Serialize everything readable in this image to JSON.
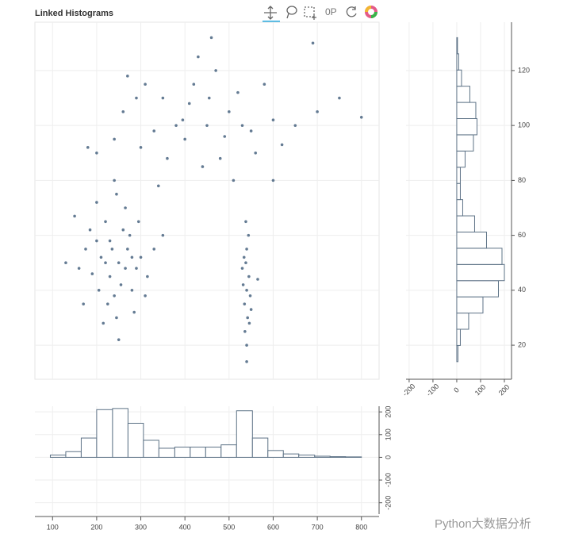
{
  "title": "Linked Histograms",
  "watermark": "Python大数据分析",
  "chart_data": [
    {
      "type": "scatter",
      "color": "#3d5a78",
      "x": [
        250,
        230,
        270,
        210,
        290,
        240,
        260,
        200,
        280,
        220,
        300,
        190,
        245,
        265,
        175,
        315,
        235,
        255,
        225,
        275,
        205,
        295,
        185,
        245,
        160,
        330,
        215,
        285,
        130,
        350,
        250,
        240,
        200,
        310,
        150,
        170,
        265,
        220,
        280,
        230,
        540,
        535,
        545,
        538,
        542,
        532,
        548,
        540,
        536,
        544,
        540,
        530,
        550,
        538,
        546,
        540,
        565,
        534,
        450,
        400,
        500,
        350,
        550,
        300,
        600,
        420,
        480,
        380,
        520,
        260,
        650,
        440,
        560,
        330,
        470,
        240,
        700,
        410,
        490,
        360,
        580,
        290,
        620,
        430,
        510,
        200,
        750,
        340,
        800,
        460,
        270,
        690,
        180,
        600,
        395,
        530,
        455,
        310
      ],
      "values": [
        50,
        45,
        55,
        52,
        48,
        38,
        62,
        58,
        40,
        65,
        52,
        46,
        30,
        70,
        55,
        45,
        55,
        42,
        35,
        60,
        40,
        65,
        62,
        75,
        48,
        55,
        28,
        32,
        50,
        60,
        22,
        80,
        72,
        38,
        67,
        35,
        48,
        50,
        52,
        58,
        40,
        35,
        45,
        50,
        30,
        42,
        38,
        55,
        25,
        60,
        20,
        48,
        33,
        65,
        28,
        14,
        44,
        52,
        100,
        95,
        105,
        110,
        98,
        92,
        102,
        115,
        88,
        100,
        112,
        105,
        100,
        85,
        90,
        98,
        120,
        95,
        105,
        108,
        96,
        88,
        115,
        110,
        93,
        125,
        80,
        90,
        110,
        78,
        103,
        132,
        118,
        130,
        92,
        80,
        102,
        100,
        110,
        115
      ]
    },
    {
      "type": "histogram",
      "bins": [
        95,
        130,
        165,
        200,
        236,
        271,
        306,
        341,
        377,
        412,
        447,
        482,
        517,
        553,
        588,
        623,
        658,
        694,
        729,
        764,
        800
      ],
      "values": [
        10,
        25,
        85,
        210,
        215,
        150,
        75,
        40,
        45,
        45,
        45,
        55,
        205,
        85,
        30,
        15,
        10,
        5,
        3,
        2
      ],
      "xlim": [
        60,
        840
      ],
      "ylim": [
        -250,
        225
      ],
      "xticks": [
        100,
        200,
        300,
        400,
        500,
        600,
        700,
        800
      ],
      "yticks": [
        -200,
        -100,
        0,
        100,
        200
      ],
      "grid": true
    },
    {
      "type": "histogram",
      "orientation": "horizontal",
      "bins": [
        14,
        19.9,
        25.8,
        31.7,
        37.6,
        43.5,
        49.4,
        55.3,
        61.2,
        67.1,
        73,
        78.9,
        84.8,
        90.7,
        96.6,
        102.5,
        108.4,
        114.3,
        120.2,
        126.1,
        132
      ],
      "values": [
        5,
        15,
        50,
        110,
        175,
        200,
        190,
        125,
        75,
        25,
        15,
        15,
        35,
        70,
        85,
        80,
        55,
        20,
        8,
        3
      ],
      "xlim": [
        -213,
        230
      ],
      "ylim": [
        7.6,
        137.6
      ],
      "xticks": [
        -200,
        -100,
        0,
        100,
        200
      ],
      "yticks": [
        20,
        40,
        60,
        80,
        100,
        120
      ],
      "grid": true
    }
  ]
}
